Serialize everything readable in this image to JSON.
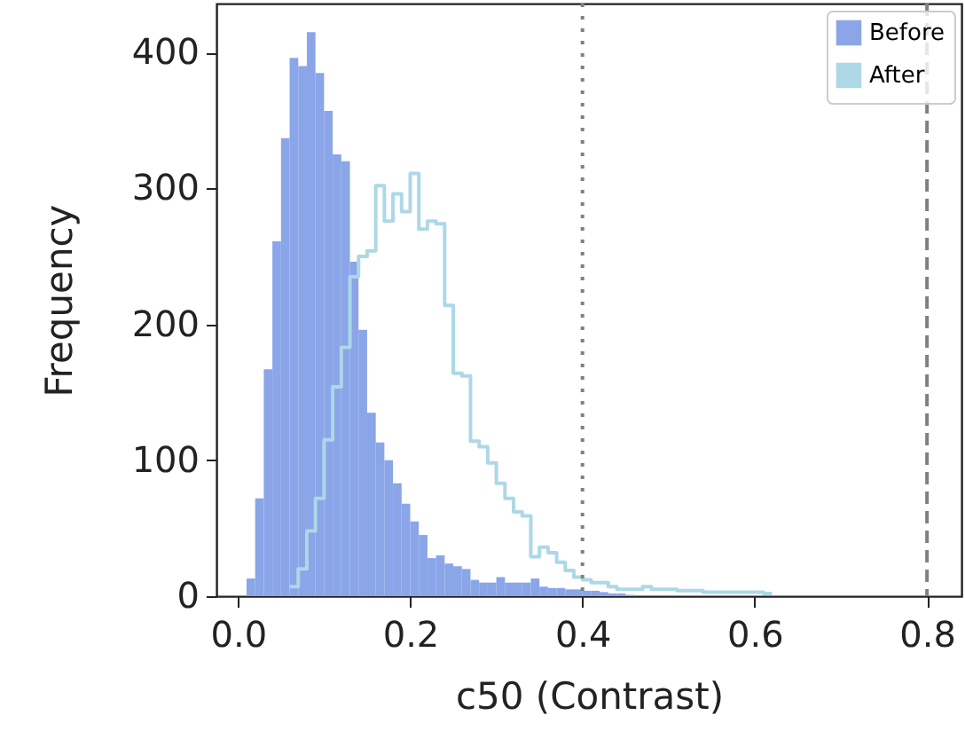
{
  "chart_data": {
    "type": "histogram",
    "xlabel": "c50 (Contrast)",
    "ylabel": "Frequency",
    "xlim": [
      -0.025,
      0.84
    ],
    "xticks": [
      {
        "value": 0,
        "label": "0.0"
      },
      0.2,
      0.4,
      0.6,
      0.8
    ],
    "ylim": [
      0,
      436
    ],
    "yticks": [
      0,
      100,
      200,
      300,
      400
    ],
    "grid": false,
    "legend": "top right",
    "series": [
      {
        "name": "Before",
        "color": "#8aa5e8",
        "bins": [
          0.01,
          0.02,
          0.03,
          0.04,
          0.05,
          0.06,
          0.07,
          0.08,
          0.09,
          0.1,
          0.11,
          0.12,
          0.13,
          0.14,
          0.15,
          0.16,
          0.17,
          0.18,
          0.19,
          0.2,
          0.21,
          0.22,
          0.23,
          0.24,
          0.25,
          0.26,
          0.27,
          0.28,
          0.29,
          0.3,
          0.31,
          0.32,
          0.33,
          0.34,
          0.35,
          0.36,
          0.37,
          0.38,
          0.39,
          0.4,
          0.41,
          0.42,
          0.43,
          0.44,
          0.45,
          0.46
        ],
        "values": [
          13,
          72,
          167,
          261,
          337,
          396,
          390,
          415,
          385,
          357,
          325,
          320,
          246,
          196,
          135,
          113,
          100,
          83,
          68,
          55,
          45,
          28,
          30,
          24,
          22,
          20,
          12,
          10,
          10,
          14,
          10,
          10,
          10,
          13,
          7,
          6,
          6,
          5,
          5,
          4,
          4,
          3,
          2,
          2,
          1
        ]
      },
      {
        "name": "After",
        "type": "step",
        "color": "#add8e6",
        "x": [
          0.06,
          0.07,
          0.08,
          0.09,
          0.1,
          0.11,
          0.12,
          0.13,
          0.14,
          0.15,
          0.16,
          0.17,
          0.18,
          0.19,
          0.2,
          0.21,
          0.22,
          0.23,
          0.24,
          0.25,
          0.26,
          0.27,
          0.28,
          0.29,
          0.3,
          0.31,
          0.32,
          0.33,
          0.34,
          0.35,
          0.36,
          0.37,
          0.38,
          0.39,
          0.4,
          0.41,
          0.42,
          0.43,
          0.44,
          0.45,
          0.46,
          0.47,
          0.48,
          0.49,
          0.5,
          0.51,
          0.52,
          0.53,
          0.54,
          0.55,
          0.56,
          0.57,
          0.58,
          0.59,
          0.6,
          0.61,
          0.62
        ],
        "values": [
          7,
          20,
          48,
          72,
          115,
          154,
          183,
          235,
          250,
          254,
          302,
          276,
          296,
          283,
          311,
          270,
          276,
          274,
          214,
          164,
          162,
          114,
          110,
          98,
          83,
          72,
          62,
          59,
          29,
          36,
          32,
          25,
          19,
          14,
          12,
          10,
          10,
          7,
          5,
          5,
          5,
          7,
          5,
          5,
          5,
          4,
          4,
          4,
          3,
          3,
          3,
          3,
          3,
          3,
          3,
          2,
          2
        ]
      }
    ],
    "ref_lines": [
      {
        "axis": "x",
        "value": 0.4,
        "color": "#808080",
        "line_style": "dotted"
      },
      {
        "axis": "x",
        "value": 0.8,
        "color": "#808080",
        "line_style": "dashed"
      }
    ]
  }
}
